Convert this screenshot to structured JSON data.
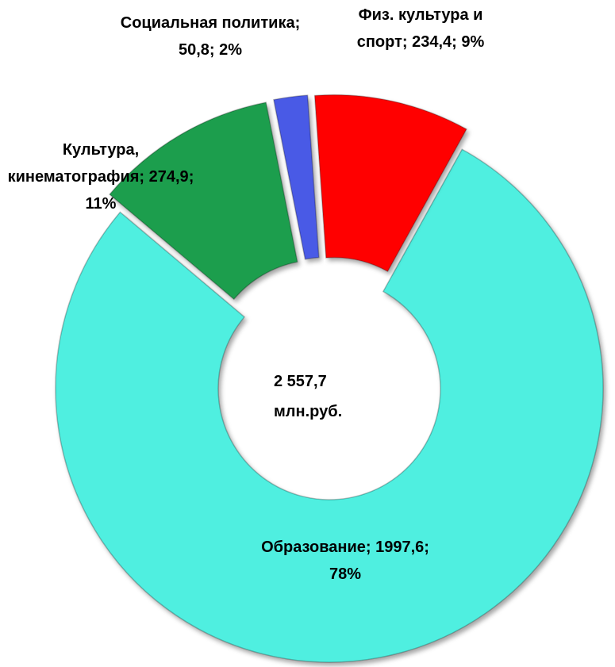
{
  "chart_data": {
    "type": "donut",
    "categories": [
      "Образование",
      "Культура, кинематография",
      "Социальная политика",
      "Физ. культура и спорт"
    ],
    "values": [
      1997.6,
      274.9,
      50.8,
      234.4
    ],
    "value_labels": [
      "1997,6",
      "274,9",
      "50,8",
      "234,4"
    ],
    "percents": [
      78,
      11,
      2,
      9
    ],
    "percent_labels": [
      "78%",
      "11%",
      "2%",
      "9%"
    ],
    "separator": "; ",
    "colors": [
      "#50efe0",
      "#1e9e4e",
      "#4a5ae6",
      "#ff0000"
    ],
    "total_label": "2 557,7",
    "unit": "млн.руб."
  }
}
